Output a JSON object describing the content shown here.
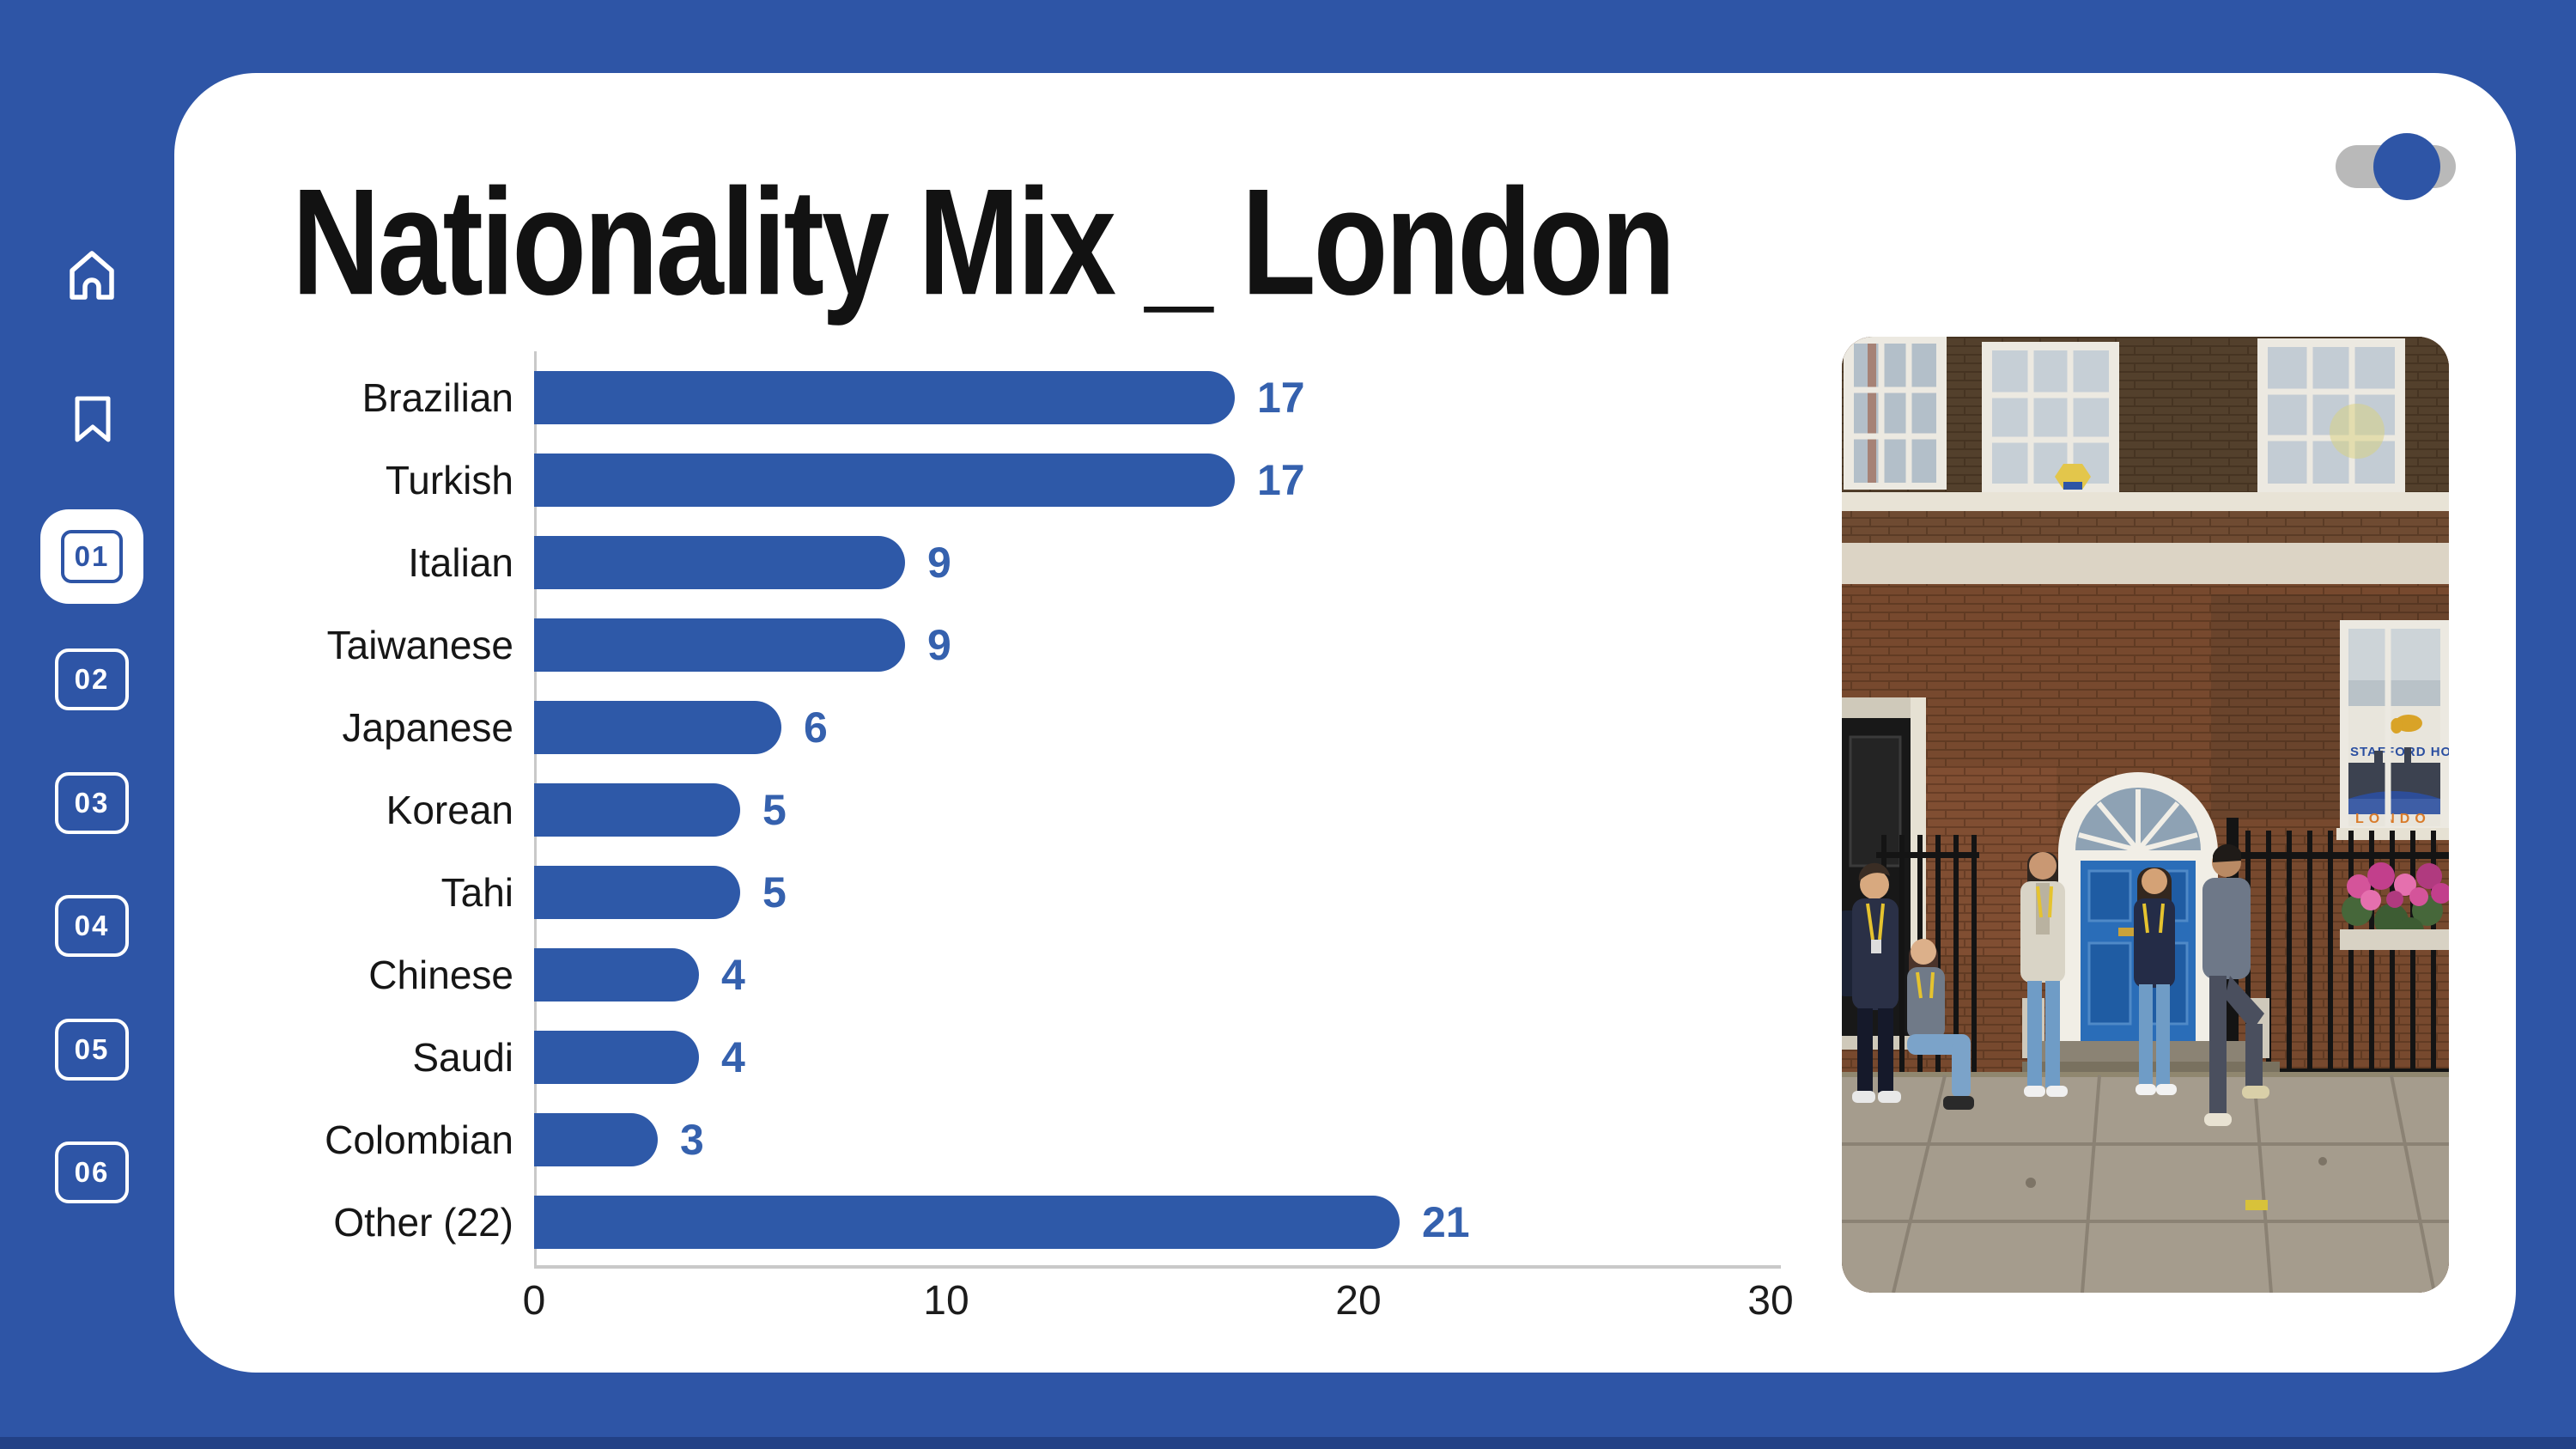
{
  "header": {
    "title": "Nationality Mix _ London"
  },
  "sidebar": {
    "icons": [
      {
        "name": "home-icon"
      },
      {
        "name": "bookmark-icon"
      }
    ],
    "pages": [
      {
        "label": "01",
        "selected": true
      },
      {
        "label": "02",
        "selected": false
      },
      {
        "label": "03",
        "selected": false
      },
      {
        "label": "04",
        "selected": false
      },
      {
        "label": "05",
        "selected": false
      },
      {
        "label": "06",
        "selected": false
      }
    ]
  },
  "toggle": {
    "state": "on"
  },
  "chart_data": {
    "type": "bar",
    "orientation": "horizontal",
    "title": "Nationality Mix _ London",
    "categories": [
      "Brazilian",
      "Turkish",
      "Italian",
      "Taiwanese",
      "Japanese",
      "Korean",
      "Tahi",
      "Chinese",
      "Saudi",
      "Colombian",
      "Other (22)"
    ],
    "values": [
      17,
      17,
      9,
      9,
      6,
      5,
      5,
      4,
      4,
      3,
      21
    ],
    "xlabel": "",
    "ylabel": "",
    "xlim": [
      0,
      30
    ],
    "xticks": [
      0,
      10,
      20,
      30
    ],
    "grid": false,
    "legend": false,
    "value_labels": true,
    "bar_color": "#2e59a8",
    "value_label_color": "#3561ae"
  },
  "photo": {
    "description": "Five students with yellow lanyards chatting on the steps of a brick London townhouse with a blue arched door and black iron railings",
    "sign_lines": [
      "STAFFORD HO",
      "LONDO"
    ]
  },
  "colors": {
    "background": "#2e55a6",
    "card": "#ffffff",
    "accent": "#2e59a8",
    "toggle_track": "#b9b9b9"
  }
}
